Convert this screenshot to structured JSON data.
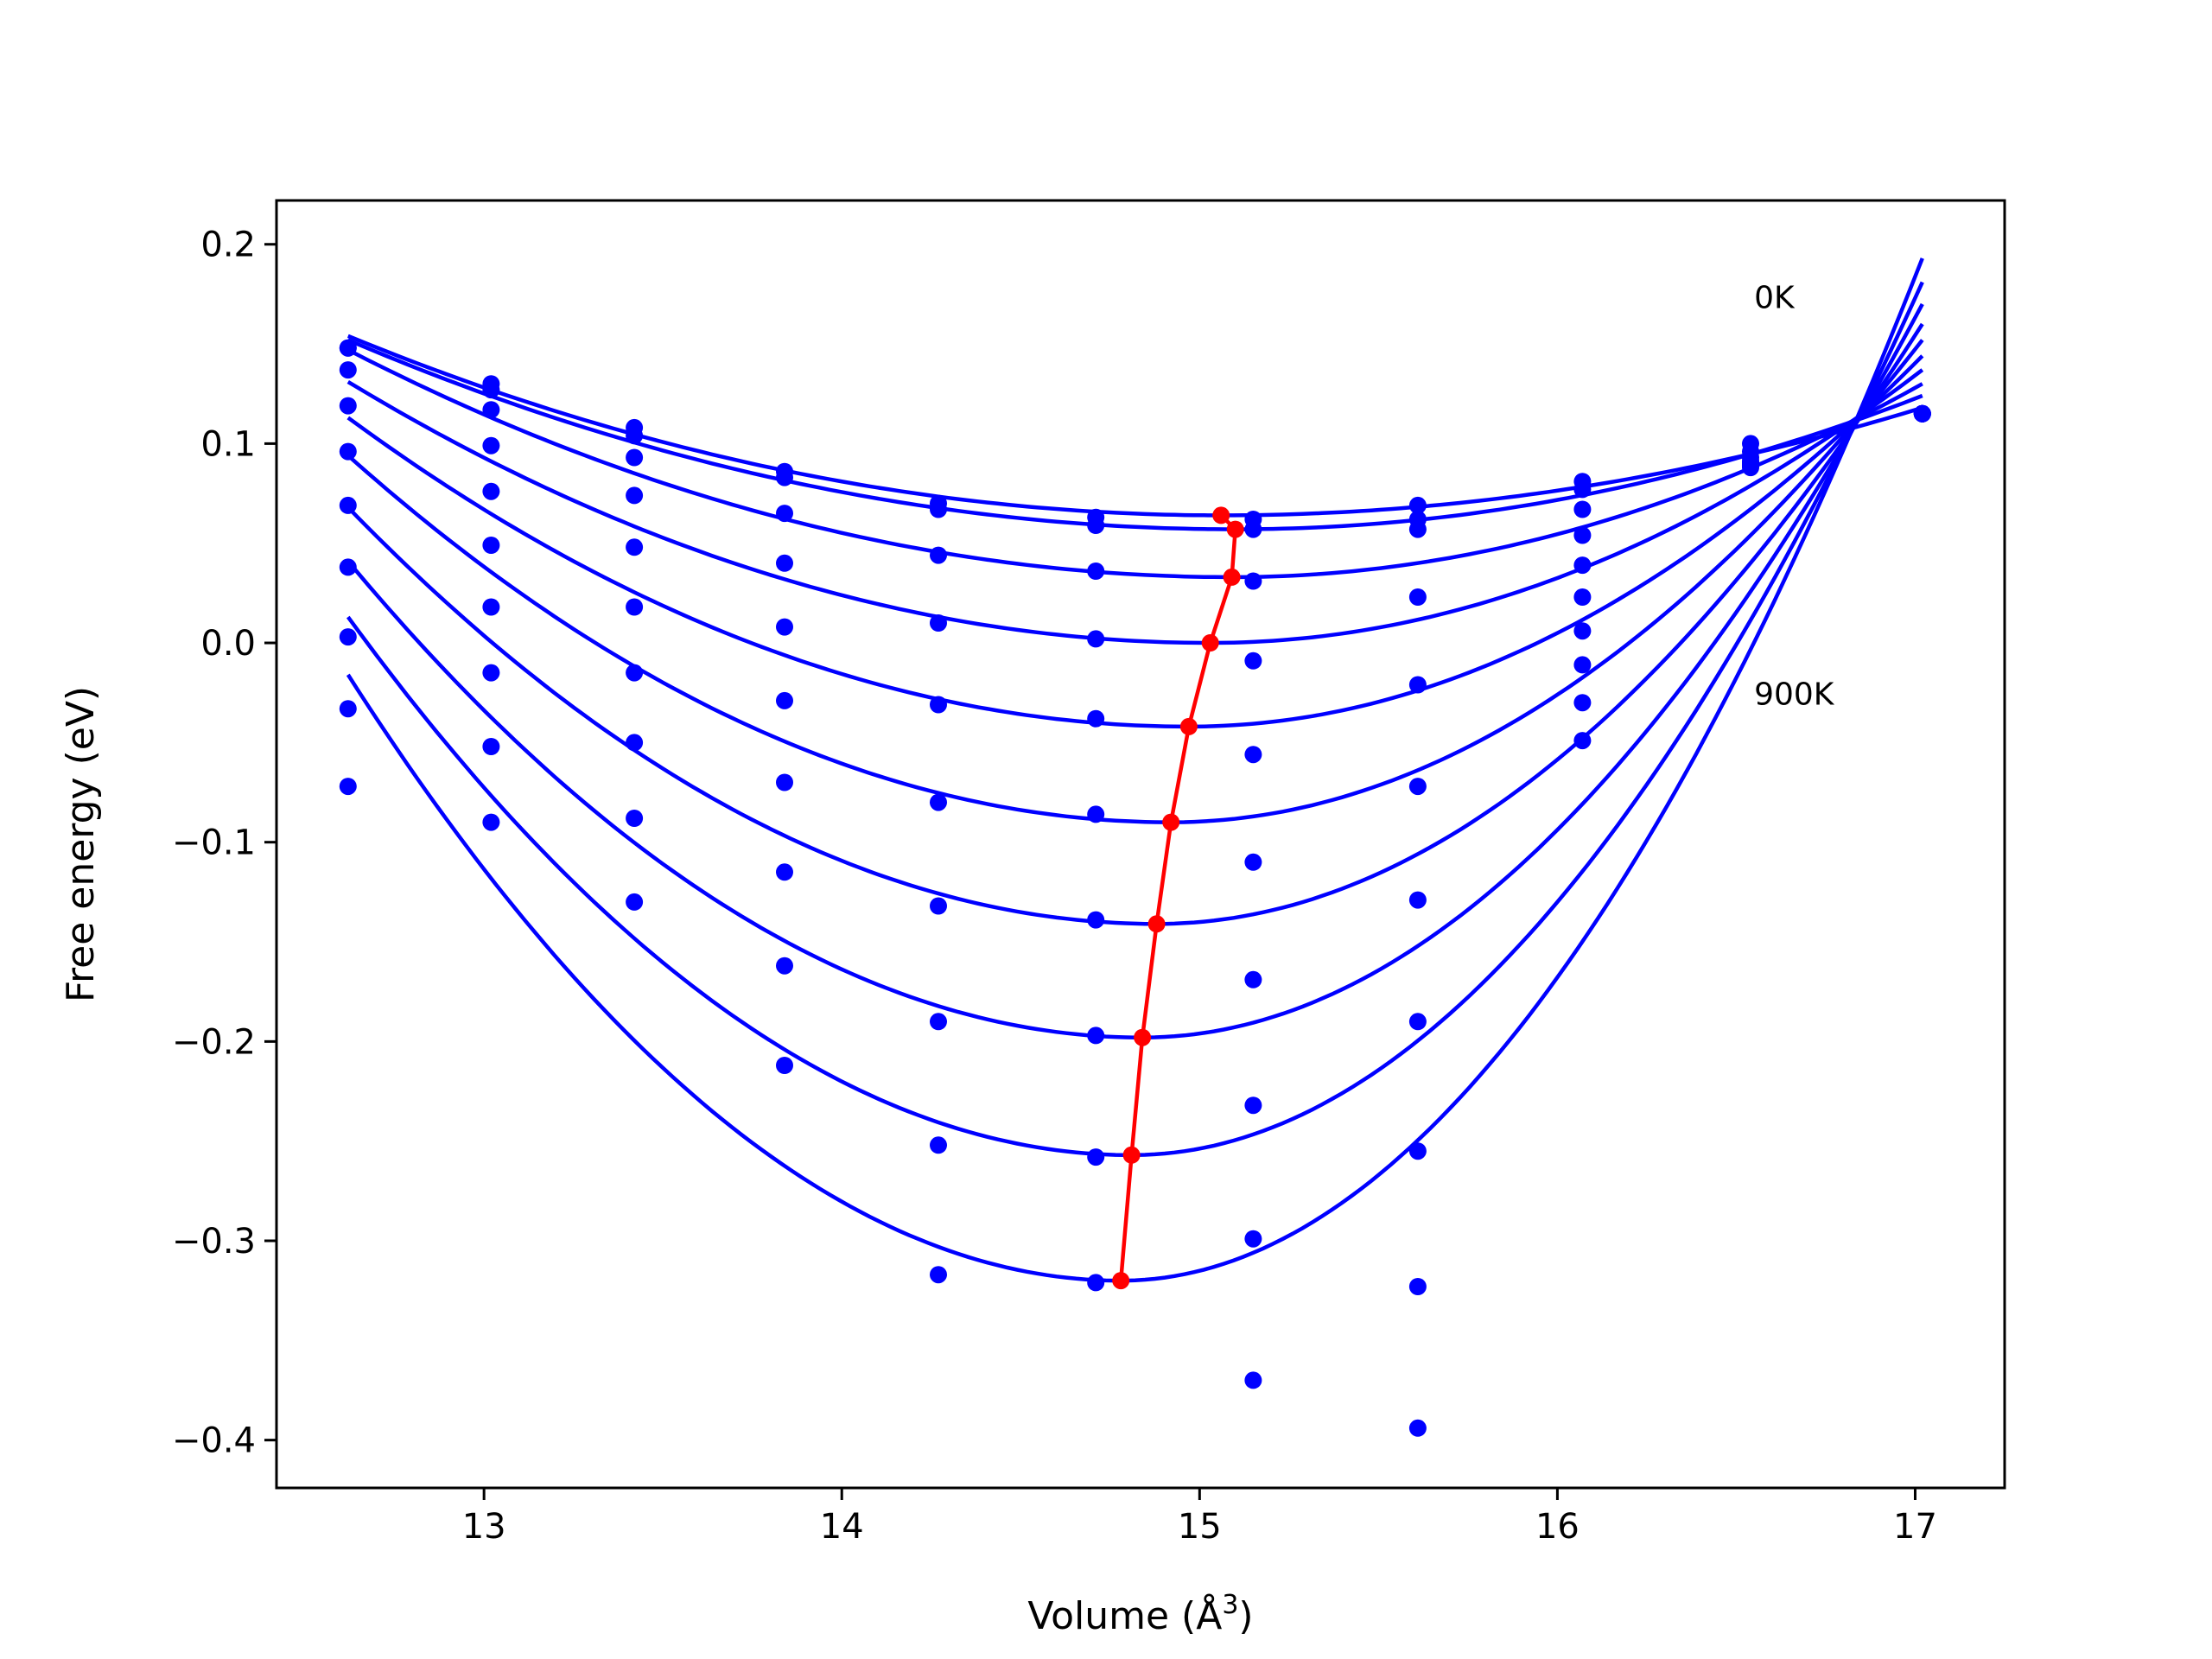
{
  "chart_data": {
    "type": "line",
    "title": "",
    "xlabel": "Volume (Å",
    "xlabel_superscript": "3",
    "xlabel_close": ")",
    "ylabel": "Free energy (eV)",
    "xlim": [
      12.42,
      17.25
    ],
    "ylim": [
      -0.424,
      0.222
    ],
    "xticks": [
      13,
      14,
      15,
      16,
      17
    ],
    "xtick_labels": [
      "13",
      "14",
      "15",
      "16",
      "17"
    ],
    "yticks": [
      0.2,
      0.1,
      0.0,
      -0.1,
      -0.2,
      -0.3,
      -0.4
    ],
    "ytick_labels": [
      "0.2",
      "0.1",
      "0.0",
      "−0.1",
      "−0.2",
      "−0.3",
      "−0.4"
    ],
    "grid": false,
    "annotations": [
      {
        "text": "0K",
        "x": 16.55,
        "y": 0.168
      },
      {
        "text": "900K",
        "x": 16.55,
        "y": -0.031
      }
    ],
    "colors": {
      "fit": "#0000ff",
      "points": "#0000ff",
      "minima": "#ff0000",
      "axes": "#000000"
    },
    "volumes": [
      12.62,
      13.02,
      13.42,
      13.84,
      14.27,
      14.71,
      15.15,
      15.61,
      16.07,
      16.54,
      17.02
    ],
    "fit_x_range": [
      12.62,
      17.02
    ],
    "series": [
      {
        "values": [
          0.148,
          0.13,
          0.108,
          0.086,
          0.07,
          0.063,
          0.062,
          0.069,
          0.081,
          0.1,
          0.115
        ],
        "fit_min": [
          15.06,
          0.064
        ]
      },
      {
        "values": [
          0.148,
          0.127,
          0.104,
          0.083,
          0.067,
          0.059,
          0.057,
          0.062,
          0.077,
          0.096,
          0.115
        ],
        "fit_min": [
          15.1,
          0.057
        ]
      },
      {
        "values": [
          0.137,
          0.117,
          0.093,
          0.065,
          0.044,
          0.036,
          0.031,
          0.057,
          0.067,
          0.093,
          0.115
        ],
        "fit_min": [
          15.09,
          0.033
        ]
      },
      {
        "values": [
          0.119,
          0.099,
          0.074,
          0.04,
          0.01,
          0.002,
          -0.009,
          0.023,
          0.054,
          0.089,
          0.115
        ],
        "fit_min": [
          15.03,
          0.0
        ]
      },
      {
        "values": [
          0.096,
          0.076,
          0.048,
          0.008,
          -0.031,
          -0.038,
          -0.056,
          -0.021,
          0.039,
          0.091,
          0.115
        ],
        "fit_min": [
          14.97,
          -0.042
        ]
      },
      {
        "values": [
          0.069,
          0.049,
          0.018,
          -0.029,
          -0.08,
          -0.086,
          -0.11,
          -0.072,
          0.023,
          0.091,
          0.115
        ],
        "fit_min": [
          14.92,
          -0.09
        ]
      },
      {
        "values": [
          0.038,
          0.018,
          -0.015,
          -0.07,
          -0.132,
          -0.139,
          -0.169,
          -0.129,
          0.006,
          0.09,
          0.115
        ],
        "fit_min": [
          14.88,
          -0.141
        ]
      },
      {
        "values": [
          0.003,
          -0.015,
          -0.05,
          -0.115,
          -0.19,
          -0.197,
          -0.232,
          -0.19,
          -0.011,
          0.089,
          0.115
        ],
        "fit_min": [
          14.84,
          -0.198
        ]
      },
      {
        "values": [
          -0.033,
          -0.052,
          -0.088,
          -0.162,
          -0.252,
          -0.258,
          -0.299,
          -0.255,
          -0.03,
          0.089,
          0.115
        ],
        "fit_min": [
          14.81,
          -0.257
        ]
      },
      {
        "values": [
          -0.072,
          -0.09,
          -0.13,
          -0.212,
          -0.317,
          -0.321,
          -0.37,
          -0.323,
          -0.049,
          0.088,
          0.115
        ],
        "fit_min": [
          14.78,
          -0.32
        ]
      }
    ],
    "extra_points": [
      [
        15.61,
        -0.394
      ]
    ],
    "fit_end_values": [
      0.154,
      0.152,
      0.147,
      0.131,
      0.113,
      0.094,
      0.068,
      0.041,
      0.013,
      -0.016
    ],
    "fit_right_values": [
      0.118,
      0.124,
      0.13,
      0.137,
      0.144,
      0.152,
      0.16,
      0.17,
      0.181,
      0.193
    ]
  }
}
